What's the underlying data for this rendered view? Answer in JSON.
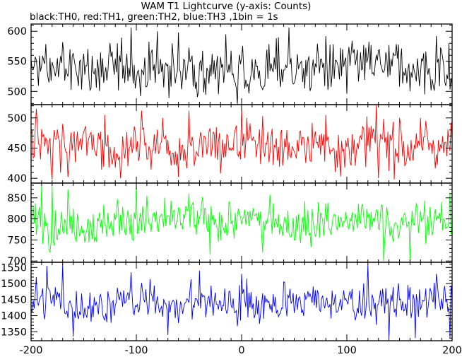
{
  "chart_data": {
    "type": "line",
    "title": "WAM T1 Lightcurve (y-axis: Counts)",
    "subtitle": "black:TH0, red:TH1, green:TH2, blue:TH3 ,1bin = 1s",
    "xlim": [
      -200,
      200
    ],
    "x_ticks": [
      -200,
      -100,
      0,
      100,
      200
    ],
    "x_minor_step": 10,
    "bin_seconds": 1,
    "grid": false,
    "legend": "none",
    "panels": [
      {
        "series": "TH0",
        "color": "#000000",
        "ylim": [
          478,
          612
        ],
        "y_ticks": [
          500,
          550,
          600
        ],
        "mean": 537,
        "noise": 23,
        "anchors": [
          [
            -170,
            582
          ],
          [
            -105,
            606
          ],
          [
            -90,
            508
          ],
          [
            -80,
            600
          ],
          [
            -60,
            598
          ],
          [
            -15,
            595
          ],
          [
            -5,
            505
          ],
          [
            5,
            508
          ],
          [
            20,
            503
          ],
          [
            35,
            590
          ],
          [
            45,
            606
          ],
          [
            60,
            505
          ],
          [
            80,
            592
          ],
          [
            100,
            496
          ],
          [
            150,
            508
          ],
          [
            160,
            500
          ],
          [
            185,
            592
          ],
          [
            197,
            580
          ]
        ]
      },
      {
        "series": "TH1",
        "color": "#ff0000",
        "ylim": [
          392,
          522
        ],
        "y_ticks": [
          400,
          450,
          500
        ],
        "mean": 455,
        "noise": 22,
        "anchors": [
          [
            -195,
            515
          ],
          [
            -180,
            398
          ],
          [
            -165,
            402
          ],
          [
            -130,
            505
          ],
          [
            -115,
            400
          ],
          [
            -95,
            512
          ],
          [
            -75,
            500
          ],
          [
            -60,
            402
          ],
          [
            -50,
            512
          ],
          [
            -20,
            408
          ],
          [
            0,
            518
          ],
          [
            5,
            500
          ],
          [
            20,
            503
          ],
          [
            80,
            505
          ],
          [
            130,
            400
          ],
          [
            150,
            500
          ],
          [
            170,
            500
          ]
        ]
      },
      {
        "series": "TH2",
        "color": "#00ff00",
        "ylim": [
          697,
          885
        ],
        "y_ticks": [
          700,
          750,
          800,
          850
        ],
        "mean": 793,
        "noise": 27,
        "anchors": [
          [
            -190,
            880
          ],
          [
            -180,
            878
          ],
          [
            -165,
            870
          ],
          [
            -100,
            888
          ],
          [
            -90,
            855
          ],
          [
            -50,
            860
          ],
          [
            -30,
            715
          ],
          [
            20,
            720
          ],
          [
            60,
            842
          ],
          [
            135,
            700
          ],
          [
            160,
            700
          ],
          [
            190,
            840
          ],
          [
            198,
            862
          ]
        ]
      },
      {
        "series": "TH3",
        "color": "#0000ff",
        "ylim": [
          1322,
          1566
        ],
        "y_ticks": [
          1350,
          1400,
          1450,
          1500,
          1550
        ],
        "mean": 1440,
        "noise": 33,
        "anchors": [
          [
            -195,
            1520
          ],
          [
            -185,
            1555
          ],
          [
            -170,
            1560
          ],
          [
            -160,
            1335
          ],
          [
            -105,
            1535
          ],
          [
            -70,
            1340
          ],
          [
            -40,
            1540
          ],
          [
            0,
            1530
          ],
          [
            5,
            1515
          ],
          [
            40,
            1505
          ],
          [
            120,
            1560
          ],
          [
            140,
            1330
          ],
          [
            165,
            1330
          ],
          [
            185,
            1530
          ],
          [
            198,
            1330
          ]
        ]
      }
    ]
  }
}
